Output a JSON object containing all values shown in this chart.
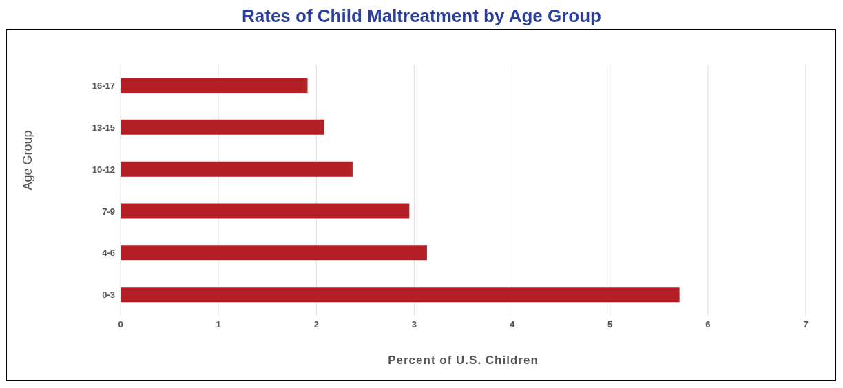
{
  "chart_data": {
    "type": "bar",
    "orientation": "horizontal",
    "title": "Rates of Child Maltreatment by Age Group",
    "xlabel": "Percent of U.S. Children",
    "ylabel": "Age Group",
    "categories": [
      "16-17",
      "13-15",
      "10-12",
      "7-9",
      "4-6",
      "0-3"
    ],
    "values": [
      1.91,
      2.08,
      2.37,
      2.95,
      3.13,
      5.71
    ],
    "color": "#b31f25",
    "xlim": [
      0,
      7
    ],
    "xticks": [
      0,
      1,
      2,
      3,
      4,
      5,
      6,
      7
    ],
    "grid": "x",
    "legend": false
  }
}
